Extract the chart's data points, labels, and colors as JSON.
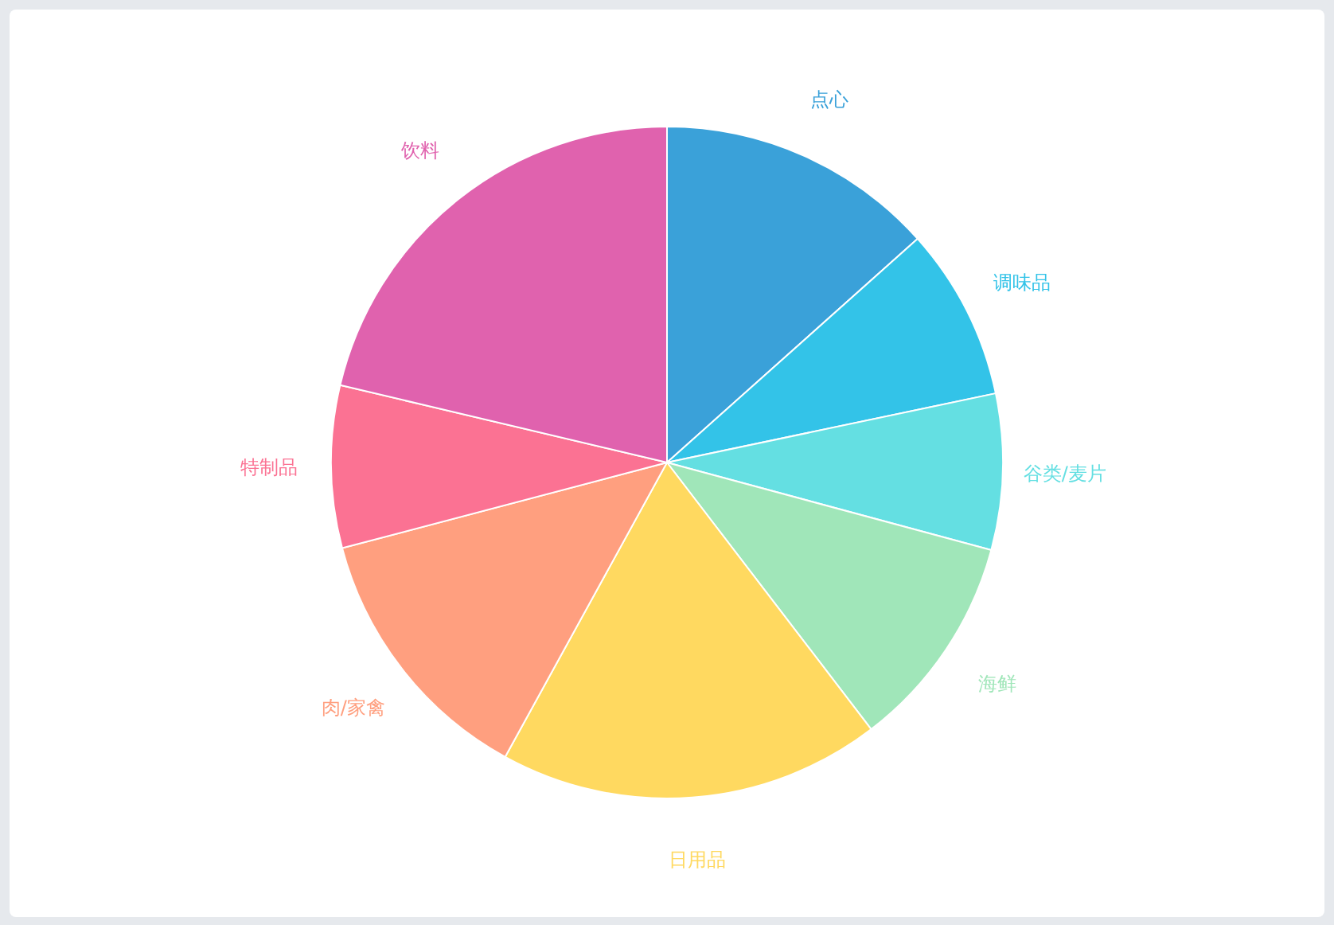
{
  "chart_data": {
    "type": "pie",
    "categories": [
      "点心",
      "调味品",
      "谷类/麦片",
      "海鲜",
      "日用品",
      "肉/家禽",
      "特制品",
      "饮料"
    ],
    "values": [
      13.4,
      8.3,
      7.5,
      10.4,
      18.4,
      12.9,
      7.8,
      21.3
    ],
    "colors": [
      "#3aa1d9",
      "#33c3e8",
      "#64dfe2",
      "#a0e6b9",
      "#ffd960",
      "#ff9f7f",
      "#fb7293",
      "#e062ae"
    ]
  }
}
